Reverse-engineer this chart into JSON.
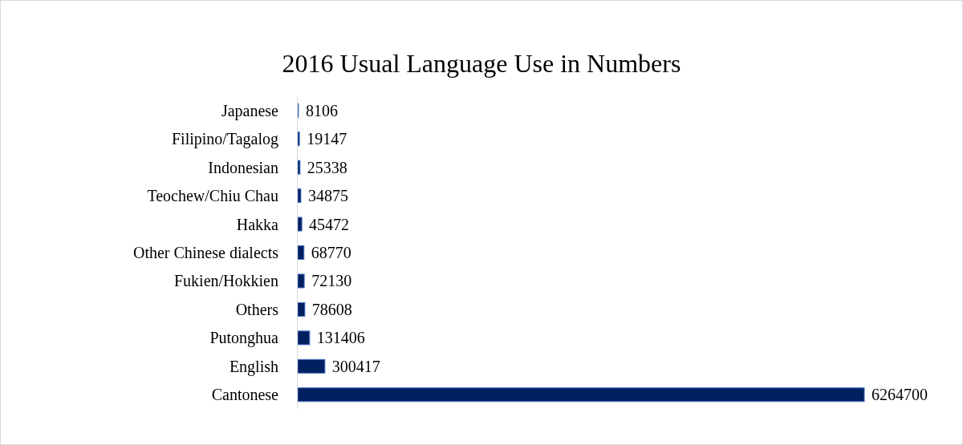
{
  "chart_data": {
    "type": "bar",
    "orientation": "horizontal",
    "title": "2016 Usual Language Use in Numbers",
    "categories": [
      "Japanese",
      "Filipino/Tagalog",
      "Indonesian",
      "Teochew/Chiu Chau",
      "Hakka",
      "Other Chinese dialects",
      "Fukien/Hokkien",
      "Others",
      "Putonghua",
      "English",
      "Cantonese"
    ],
    "values": [
      8106,
      19147,
      25338,
      34875,
      45472,
      68770,
      72130,
      78608,
      131406,
      300417,
      6264700
    ],
    "color": "#002060",
    "data_labels": true
  }
}
